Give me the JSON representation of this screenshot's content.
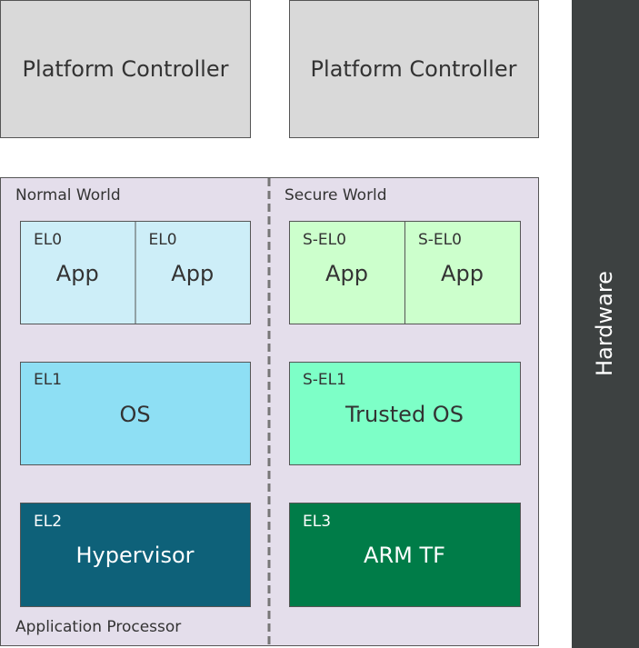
{
  "platform_controllers": [
    "Platform Controller",
    "Platform Controller"
  ],
  "hardware": "Hardware",
  "application_processor": {
    "label": "Application Processor",
    "worlds": [
      {
        "label": "Normal World",
        "apps": [
          {
            "level": "EL0",
            "name": "App"
          },
          {
            "level": "EL0",
            "name": "App"
          }
        ],
        "os": {
          "level": "EL1",
          "name": "OS"
        },
        "bottom": {
          "level": "EL2",
          "name": "Hypervisor"
        }
      },
      {
        "label": "Secure World",
        "apps": [
          {
            "level": "S-EL0",
            "name": "App"
          },
          {
            "level": "S-EL0",
            "name": "App"
          }
        ],
        "os": {
          "level": "S-EL1",
          "name": "Trusted OS"
        },
        "bottom": {
          "level": "EL3",
          "name": "ARM TF"
        }
      }
    ]
  }
}
